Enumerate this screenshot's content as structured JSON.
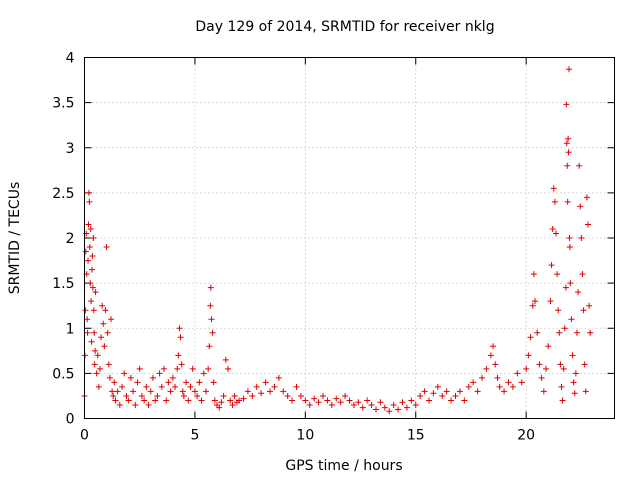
{
  "chart_data": {
    "type": "scatter",
    "title": "Day 129 of 2014, SRMTID for receiver nklg",
    "xlabel": "GPS time / hours",
    "ylabel": "SRMTID / TECUs",
    "xlim": [
      0,
      24
    ],
    "ylim": [
      0,
      4
    ],
    "xticks": [
      0,
      5,
      10,
      15,
      20
    ],
    "yticks": [
      0,
      0.5,
      1,
      1.5,
      2,
      2.5,
      3,
      3.5,
      4
    ],
    "xtick_labels": [
      "0",
      "5",
      "10",
      "15",
      "20"
    ],
    "ytick_labels": [
      "0",
      "0.5",
      "1",
      "1.5",
      "2",
      "2.5",
      "3",
      "3.5",
      "4"
    ],
    "grid": true,
    "marker": "plus",
    "color": "#e00000",
    "series": [
      {
        "name": "SRMTID",
        "points": [
          [
            0.0,
            0.25
          ],
          [
            0.02,
            0.7
          ],
          [
            0.04,
            1.2
          ],
          [
            0.06,
            1.85
          ],
          [
            0.08,
            2.05
          ],
          [
            0.1,
            1.6
          ],
          [
            0.12,
            1.1
          ],
          [
            0.14,
            0.95
          ],
          [
            0.16,
            1.75
          ],
          [
            0.18,
            2.15
          ],
          [
            0.2,
            2.5
          ],
          [
            0.22,
            2.4
          ],
          [
            0.24,
            1.9
          ],
          [
            0.26,
            1.5
          ],
          [
            0.28,
            2.1
          ],
          [
            0.3,
            1.3
          ],
          [
            0.32,
            0.85
          ],
          [
            0.34,
            1.65
          ],
          [
            0.36,
            1.8
          ],
          [
            0.38,
            1.45
          ],
          [
            0.4,
            2.0
          ],
          [
            0.42,
            1.2
          ],
          [
            0.44,
            0.95
          ],
          [
            0.46,
            0.6
          ],
          [
            0.48,
            0.75
          ],
          [
            0.5,
            1.4
          ],
          [
            0.55,
            0.5
          ],
          [
            0.6,
            0.7
          ],
          [
            0.65,
            0.35
          ],
          [
            0.7,
            0.55
          ],
          [
            0.75,
            0.9
          ],
          [
            0.8,
            1.25
          ],
          [
            0.85,
            1.05
          ],
          [
            0.9,
            0.8
          ],
          [
            0.95,
            1.2
          ],
          [
            1.0,
            1.9
          ],
          [
            1.05,
            0.95
          ],
          [
            1.1,
            0.6
          ],
          [
            1.15,
            0.45
          ],
          [
            1.2,
            1.1
          ],
          [
            1.25,
            0.3
          ],
          [
            1.3,
            0.25
          ],
          [
            1.35,
            0.4
          ],
          [
            1.4,
            0.2
          ],
          [
            1.5,
            0.3
          ],
          [
            1.6,
            0.15
          ],
          [
            1.7,
            0.35
          ],
          [
            1.8,
            0.5
          ],
          [
            1.9,
            0.25
          ],
          [
            2.0,
            0.2
          ],
          [
            2.1,
            0.45
          ],
          [
            2.2,
            0.3
          ],
          [
            2.3,
            0.15
          ],
          [
            2.4,
            0.4
          ],
          [
            2.5,
            0.55
          ],
          [
            2.6,
            0.25
          ],
          [
            2.7,
            0.2
          ],
          [
            2.8,
            0.35
          ],
          [
            2.9,
            0.15
          ],
          [
            3.0,
            0.3
          ],
          [
            3.1,
            0.45
          ],
          [
            3.2,
            0.2
          ],
          [
            3.3,
            0.25
          ],
          [
            3.4,
            0.5
          ],
          [
            3.5,
            0.35
          ],
          [
            3.6,
            0.55
          ],
          [
            3.7,
            0.2
          ],
          [
            3.8,
            0.4
          ],
          [
            3.9,
            0.3
          ],
          [
            4.0,
            0.45
          ],
          [
            4.1,
            0.35
          ],
          [
            4.2,
            0.55
          ],
          [
            4.25,
            0.7
          ],
          [
            4.3,
            1.0
          ],
          [
            4.35,
            0.9
          ],
          [
            4.4,
            0.6
          ],
          [
            4.45,
            0.3
          ],
          [
            4.5,
            0.25
          ],
          [
            4.6,
            0.4
          ],
          [
            4.7,
            0.2
          ],
          [
            4.8,
            0.35
          ],
          [
            4.9,
            0.55
          ],
          [
            5.0,
            0.3
          ],
          [
            5.1,
            0.25
          ],
          [
            5.2,
            0.4
          ],
          [
            5.3,
            0.2
          ],
          [
            5.4,
            0.5
          ],
          [
            5.5,
            0.3
          ],
          [
            5.6,
            0.55
          ],
          [
            5.65,
            0.8
          ],
          [
            5.7,
            1.25
          ],
          [
            5.72,
            1.45
          ],
          [
            5.75,
            1.1
          ],
          [
            5.8,
            0.95
          ],
          [
            5.85,
            0.4
          ],
          [
            5.9,
            0.2
          ],
          [
            6.0,
            0.15
          ],
          [
            6.1,
            0.12
          ],
          [
            6.2,
            0.18
          ],
          [
            6.3,
            0.25
          ],
          [
            6.4,
            0.65
          ],
          [
            6.5,
            0.55
          ],
          [
            6.6,
            0.2
          ],
          [
            6.7,
            0.15
          ],
          [
            6.8,
            0.25
          ],
          [
            6.9,
            0.18
          ],
          [
            7.0,
            0.2
          ],
          [
            7.2,
            0.22
          ],
          [
            7.4,
            0.3
          ],
          [
            7.6,
            0.25
          ],
          [
            7.8,
            0.35
          ],
          [
            8.0,
            0.28
          ],
          [
            8.2,
            0.4
          ],
          [
            8.4,
            0.3
          ],
          [
            8.6,
            0.35
          ],
          [
            8.8,
            0.45
          ],
          [
            9.0,
            0.3
          ],
          [
            9.2,
            0.25
          ],
          [
            9.4,
            0.2
          ],
          [
            9.6,
            0.35
          ],
          [
            9.8,
            0.25
          ],
          [
            10.0,
            0.2
          ],
          [
            10.2,
            0.15
          ],
          [
            10.4,
            0.22
          ],
          [
            10.6,
            0.18
          ],
          [
            10.8,
            0.25
          ],
          [
            11.0,
            0.2
          ],
          [
            11.2,
            0.15
          ],
          [
            11.4,
            0.22
          ],
          [
            11.6,
            0.18
          ],
          [
            11.8,
            0.25
          ],
          [
            12.0,
            0.2
          ],
          [
            12.2,
            0.15
          ],
          [
            12.4,
            0.18
          ],
          [
            12.6,
            0.12
          ],
          [
            12.8,
            0.2
          ],
          [
            13.0,
            0.15
          ],
          [
            13.2,
            0.1
          ],
          [
            13.4,
            0.18
          ],
          [
            13.6,
            0.12
          ],
          [
            13.8,
            0.08
          ],
          [
            14.0,
            0.15
          ],
          [
            14.2,
            0.1
          ],
          [
            14.4,
            0.18
          ],
          [
            14.6,
            0.12
          ],
          [
            14.8,
            0.2
          ],
          [
            15.0,
            0.15
          ],
          [
            15.2,
            0.25
          ],
          [
            15.4,
            0.3
          ],
          [
            15.6,
            0.2
          ],
          [
            15.8,
            0.28
          ],
          [
            16.0,
            0.35
          ],
          [
            16.2,
            0.25
          ],
          [
            16.4,
            0.3
          ],
          [
            16.6,
            0.2
          ],
          [
            16.8,
            0.25
          ],
          [
            17.0,
            0.3
          ],
          [
            17.2,
            0.2
          ],
          [
            17.4,
            0.35
          ],
          [
            17.6,
            0.4
          ],
          [
            17.8,
            0.3
          ],
          [
            18.0,
            0.45
          ],
          [
            18.2,
            0.55
          ],
          [
            18.4,
            0.7
          ],
          [
            18.5,
            0.8
          ],
          [
            18.6,
            0.6
          ],
          [
            18.7,
            0.45
          ],
          [
            18.8,
            0.35
          ],
          [
            19.0,
            0.3
          ],
          [
            19.2,
            0.4
          ],
          [
            19.4,
            0.35
          ],
          [
            19.6,
            0.5
          ],
          [
            19.8,
            0.4
          ],
          [
            20.0,
            0.55
          ],
          [
            20.1,
            0.7
          ],
          [
            20.2,
            0.9
          ],
          [
            20.3,
            1.25
          ],
          [
            20.35,
            1.6
          ],
          [
            20.4,
            1.3
          ],
          [
            20.5,
            0.95
          ],
          [
            20.6,
            0.6
          ],
          [
            20.7,
            0.45
          ],
          [
            20.8,
            0.3
          ],
          [
            20.9,
            0.55
          ],
          [
            21.0,
            0.8
          ],
          [
            21.1,
            1.3
          ],
          [
            21.15,
            1.7
          ],
          [
            21.2,
            2.1
          ],
          [
            21.25,
            2.55
          ],
          [
            21.3,
            2.4
          ],
          [
            21.35,
            2.05
          ],
          [
            21.4,
            1.6
          ],
          [
            21.45,
            1.2
          ],
          [
            21.5,
            0.95
          ],
          [
            21.55,
            0.6
          ],
          [
            21.6,
            0.35
          ],
          [
            21.65,
            0.2
          ],
          [
            21.7,
            0.55
          ],
          [
            21.75,
            1.0
          ],
          [
            21.8,
            1.45
          ],
          [
            21.82,
            3.48
          ],
          [
            21.84,
            3.05
          ],
          [
            21.86,
            2.8
          ],
          [
            21.88,
            2.4
          ],
          [
            21.9,
            3.1
          ],
          [
            21.92,
            2.95
          ],
          [
            21.94,
            3.87
          ],
          [
            21.96,
            2.0
          ],
          [
            21.98,
            1.9
          ],
          [
            22.0,
            1.5
          ],
          [
            22.05,
            1.1
          ],
          [
            22.1,
            0.7
          ],
          [
            22.15,
            0.4
          ],
          [
            22.2,
            0.28
          ],
          [
            22.25,
            0.5
          ],
          [
            22.3,
            0.95
          ],
          [
            22.35,
            1.4
          ],
          [
            22.4,
            2.8
          ],
          [
            22.45,
            2.35
          ],
          [
            22.5,
            2.0
          ],
          [
            22.55,
            1.6
          ],
          [
            22.6,
            1.2
          ],
          [
            22.65,
            0.6
          ],
          [
            22.7,
            0.3
          ],
          [
            22.75,
            2.45
          ],
          [
            22.8,
            2.15
          ],
          [
            22.85,
            1.25
          ],
          [
            22.9,
            0.95
          ]
        ]
      }
    ]
  }
}
